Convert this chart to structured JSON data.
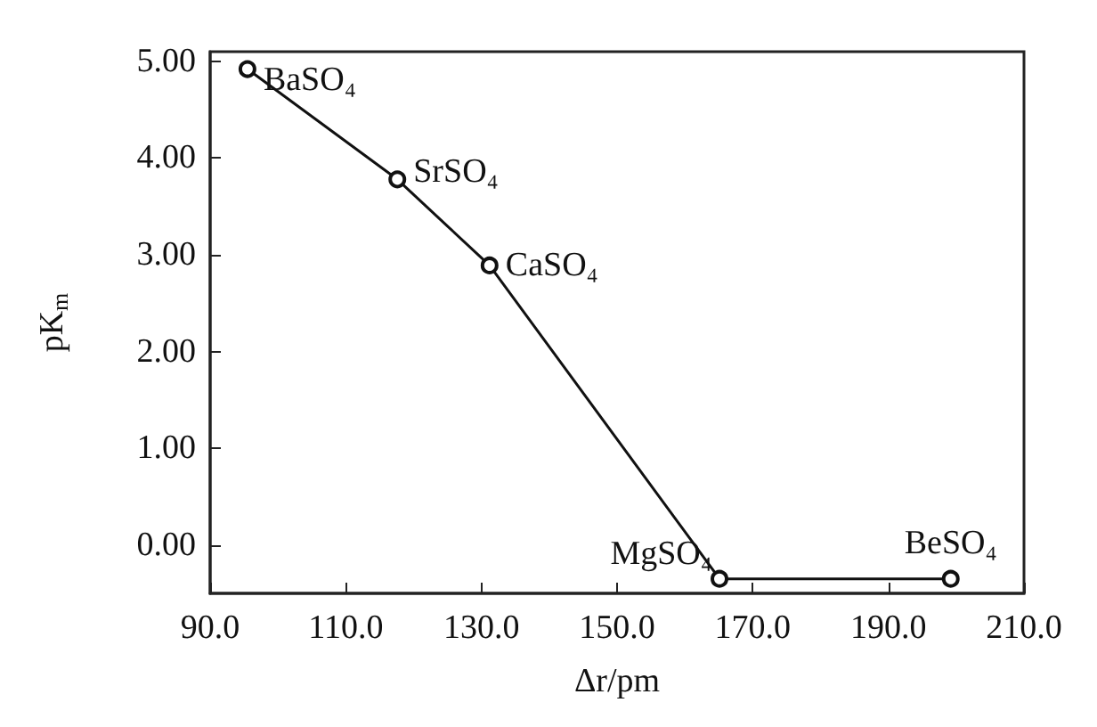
{
  "chart_data": {
    "type": "line",
    "xlabel": "Δr/pm",
    "ylabel": "pK$_{m}$",
    "x": [
      95.5,
      117.6,
      131.2,
      165.1,
      199.2
    ],
    "series": [
      {
        "color": "#111111",
        "values": [
          4.92,
          3.78,
          2.89,
          -0.35,
          -0.35
        ]
      }
    ],
    "marker": "circle",
    "line_style": "solid",
    "grid": false,
    "xlim": [
      90,
      210
    ],
    "xticks": [
      {
        "value": 90,
        "label": "90.0"
      },
      {
        "value": 110,
        "label": "110.0"
      },
      {
        "value": 130,
        "label": "130.0"
      },
      {
        "value": 150,
        "label": "150.0"
      },
      {
        "value": 170,
        "label": "170.0"
      },
      {
        "value": 190,
        "label": "190.0"
      },
      {
        "value": 210,
        "label": "210.0"
      }
    ],
    "ylim": [
      -0.5,
      5.1
    ],
    "yticks": [
      {
        "value": 0,
        "label": "0.00"
      },
      {
        "value": 1,
        "label": "1.00"
      },
      {
        "value": 2,
        "label": "2.00"
      },
      {
        "value": 3,
        "label": "3.00"
      },
      {
        "value": 4,
        "label": "4.00"
      },
      {
        "value": 5,
        "label": "5.00"
      }
    ],
    "annotations": [
      {
        "text": "BaSO₄",
        "x": 95.5,
        "y": 4.92
      },
      {
        "text": "SrSO₄",
        "x": 117.6,
        "y": 3.78
      },
      {
        "text": "CaSO₄",
        "x": 131.2,
        "y": 2.89
      },
      {
        "text": "MgSO₄",
        "x": 165.1,
        "y": -0.35
      },
      {
        "text": "BeSO₄",
        "x": 199.2,
        "y": -0.35
      }
    ]
  }
}
